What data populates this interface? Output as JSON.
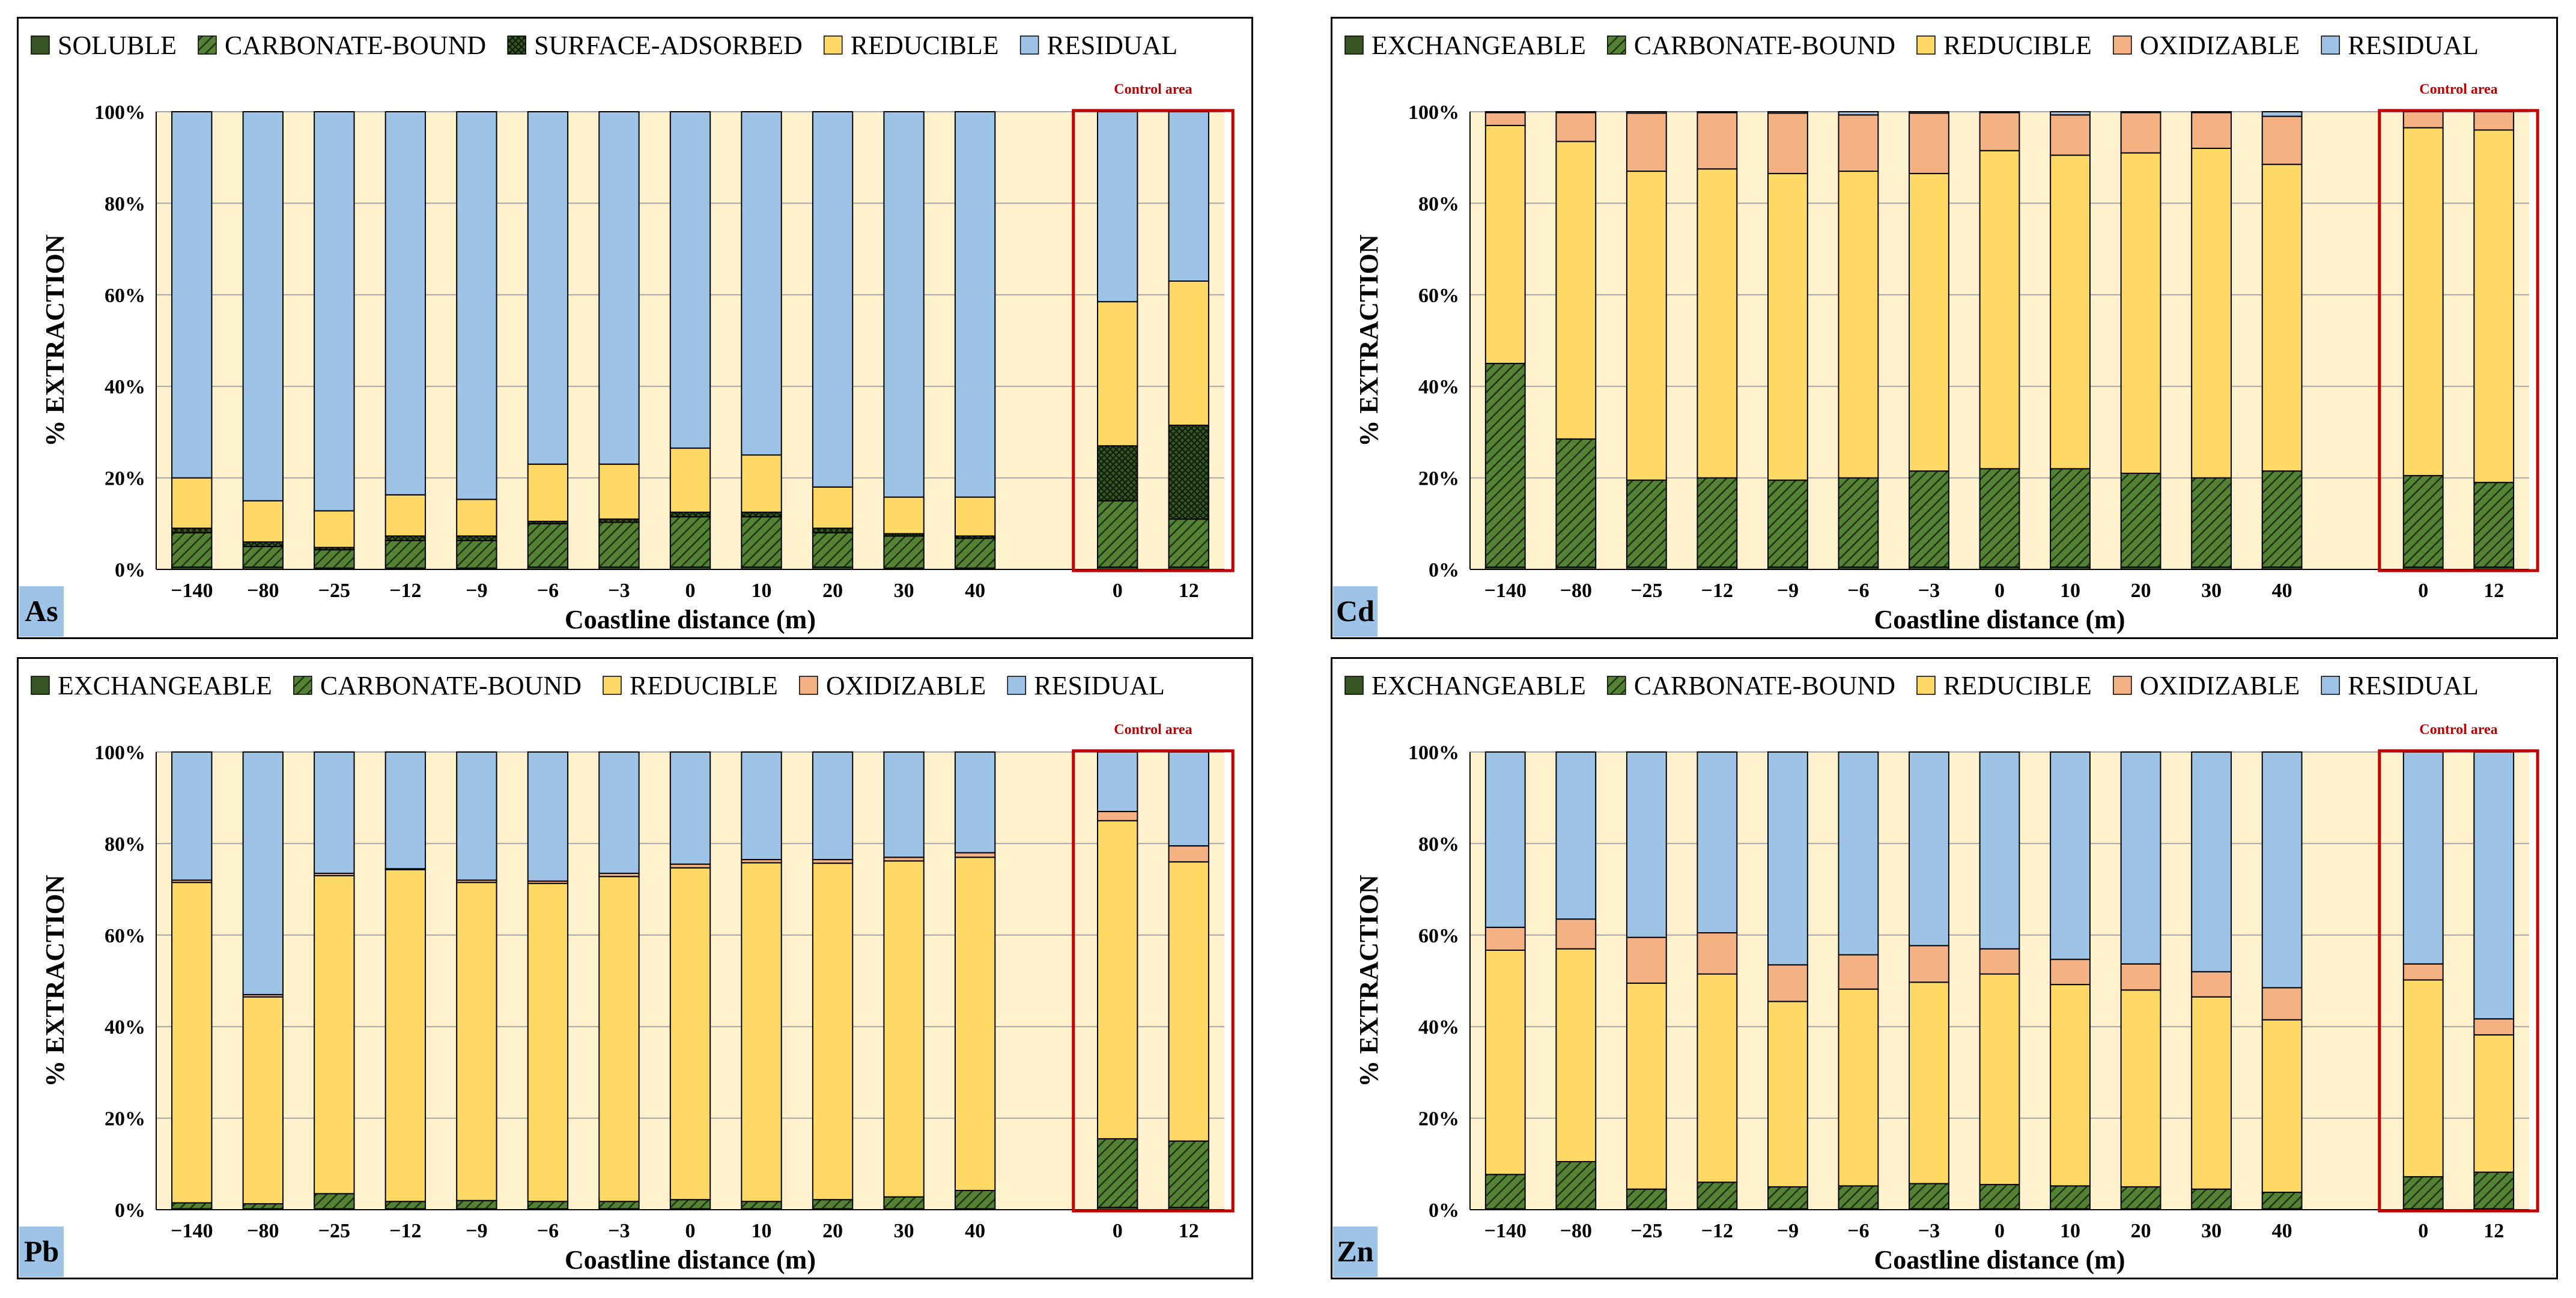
{
  "panel_labels": {
    "as": "As",
    "cd": "Cd",
    "pb": "Pb",
    "zn": "Zn"
  },
  "control_label": "Control area",
  "colors": {
    "background": "#fff2cc",
    "exchangeable": "#375623",
    "carbonate_bound": "#548235",
    "surface_adsorbed": "#375623",
    "reducible": "#ffd966",
    "oxidizable": "#f4b183",
    "residual": "#9dc3e6",
    "control_box": "#c00000"
  },
  "chart_data": [
    {
      "id": "as",
      "type": "bar",
      "stacked": true,
      "title": "As",
      "xlabel": "Coastline distance (m)",
      "ylabel": "% EXTRACTION",
      "ylim": [
        0,
        100
      ],
      "yticks": [
        "0%",
        "20%",
        "40%",
        "60%",
        "80%",
        "100%"
      ],
      "categories": [
        "−140",
        "−80",
        "−25",
        "−12",
        "−9",
        "−6",
        "−3",
        "0",
        "10",
        "20",
        "30",
        "40",
        "0",
        "12"
      ],
      "control_categories": [
        "0",
        "12"
      ],
      "legend": [
        "SOLUBLE",
        "CARBONATE-BOUND",
        "SURFACE-ADSORBED",
        "REDUCIBLE",
        "RESIDUAL"
      ],
      "series": [
        {
          "name": "SOLUBLE",
          "key": "exchangeable",
          "values": [
            0.5,
            0.5,
            0.3,
            0.3,
            0.3,
            0.5,
            0.5,
            0.5,
            0.5,
            0.5,
            0.3,
            0.3,
            0.5,
            0.5
          ]
        },
        {
          "name": "CARBONATE-BOUND",
          "key": "carbonate_bound",
          "values": [
            7.5,
            4.5,
            4.0,
            6.0,
            6.0,
            9.5,
            9.8,
            11.0,
            11.0,
            7.5,
            7.0,
            6.5,
            14.5,
            10.5
          ]
        },
        {
          "name": "SURFACE-ADSORBED",
          "key": "surface_adsorbed",
          "values": [
            1.0,
            1.0,
            0.5,
            1.0,
            1.0,
            0.5,
            0.7,
            1.0,
            1.0,
            1.0,
            0.5,
            0.5,
            12.0,
            20.5
          ]
        },
        {
          "name": "REDUCIBLE",
          "key": "reducible",
          "values": [
            11.0,
            9.0,
            8.0,
            9.0,
            8.0,
            12.5,
            12.0,
            14.0,
            12.5,
            9.0,
            8.0,
            8.5,
            31.5,
            31.5
          ]
        },
        {
          "name": "RESIDUAL",
          "key": "residual",
          "values": [
            80.0,
            85.0,
            87.2,
            83.7,
            84.7,
            77.0,
            77.0,
            73.5,
            75.0,
            82.0,
            84.2,
            84.2,
            41.5,
            37.0
          ]
        }
      ]
    },
    {
      "id": "cd",
      "type": "bar",
      "stacked": true,
      "title": "Cd",
      "xlabel": "Coastline distance (m)",
      "ylabel": "% EXTRACTION",
      "ylim": [
        0,
        100
      ],
      "yticks": [
        "0%",
        "20%",
        "40%",
        "60%",
        "80%",
        "100%"
      ],
      "categories": [
        "−140",
        "−80",
        "−25",
        "−12",
        "−9",
        "−6",
        "−3",
        "0",
        "10",
        "20",
        "30",
        "40",
        "0",
        "12"
      ],
      "control_categories": [
        "0",
        "12"
      ],
      "legend": [
        "EXCHANGEABLE",
        "CARBONATE-BOUND",
        "REDUCIBLE",
        "OXIDIZABLE",
        "RESIDUAL"
      ],
      "series": [
        {
          "name": "EXCHANGEABLE",
          "key": "exchangeable",
          "values": [
            0.5,
            0.5,
            0.5,
            0.5,
            0.5,
            0.5,
            0.5,
            0.5,
            0.5,
            0.5,
            0.5,
            0.5,
            0.5,
            0.5
          ]
        },
        {
          "name": "CARBONATE-BOUND",
          "key": "carbonate_bound",
          "values": [
            44.5,
            28.0,
            19.0,
            19.5,
            19.0,
            19.5,
            21.0,
            21.5,
            21.5,
            20.5,
            19.5,
            21.0,
            20.0,
            18.5
          ]
        },
        {
          "name": "REDUCIBLE",
          "key": "reducible",
          "values": [
            52.0,
            65.0,
            67.5,
            67.5,
            67.0,
            67.0,
            65.0,
            69.5,
            68.5,
            70.0,
            72.0,
            67.0,
            76.0,
            77.0
          ]
        },
        {
          "name": "OXIDIZABLE",
          "key": "oxidizable",
          "values": [
            2.8,
            6.3,
            12.7,
            12.3,
            13.2,
            12.3,
            13.2,
            8.3,
            8.8,
            8.8,
            7.8,
            10.5,
            3.5,
            4.0
          ]
        },
        {
          "name": "RESIDUAL",
          "key": "residual",
          "values": [
            0.2,
            0.2,
            0.3,
            0.2,
            0.3,
            0.7,
            0.3,
            0.2,
            0.7,
            0.2,
            0.2,
            1.0,
            0,
            0
          ]
        }
      ]
    },
    {
      "id": "pb",
      "type": "bar",
      "stacked": true,
      "title": "Pb",
      "xlabel": "Coastline distance (m)",
      "ylabel": "% EXTRACTION",
      "ylim": [
        0,
        100
      ],
      "yticks": [
        "0%",
        "20%",
        "40%",
        "60%",
        "80%",
        "100%"
      ],
      "categories": [
        "−140",
        "−80",
        "−25",
        "−12",
        "−9",
        "−6",
        "−3",
        "0",
        "10",
        "20",
        "30",
        "40",
        "0",
        "12"
      ],
      "control_categories": [
        "0",
        "12"
      ],
      "legend": [
        "EXCHANGEABLE",
        "CARBONATE-BOUND",
        "REDUCIBLE",
        "OXIDIZABLE",
        "RESIDUAL"
      ],
      "series": [
        {
          "name": "EXCHANGEABLE",
          "key": "exchangeable",
          "values": [
            0.2,
            0.2,
            0.2,
            0.2,
            0.2,
            0.2,
            0.2,
            0.2,
            0.2,
            0.2,
            0.2,
            0.2,
            0.5,
            0.5
          ]
        },
        {
          "name": "CARBONATE-BOUND",
          "key": "carbonate_bound",
          "values": [
            1.3,
            1.1,
            3.3,
            1.6,
            1.8,
            1.6,
            1.6,
            2.0,
            1.6,
            2.0,
            2.6,
            4.0,
            15.0,
            14.5
          ]
        },
        {
          "name": "REDUCIBLE",
          "key": "reducible",
          "values": [
            70.0,
            45.2,
            69.5,
            72.5,
            69.5,
            69.5,
            71.0,
            72.5,
            74.0,
            73.5,
            73.4,
            72.8,
            69.5,
            61.0
          ]
        },
        {
          "name": "OXIDIZABLE",
          "key": "oxidizable",
          "values": [
            0.5,
            0.5,
            0.5,
            0.2,
            0.5,
            0.5,
            0.7,
            0.8,
            0.7,
            0.8,
            0.8,
            1.0,
            2.0,
            3.5
          ]
        },
        {
          "name": "RESIDUAL",
          "key": "residual",
          "values": [
            28.0,
            53.0,
            26.5,
            25.5,
            28.0,
            28.2,
            26.5,
            24.5,
            23.5,
            23.5,
            23.0,
            22.0,
            13.0,
            20.5
          ]
        }
      ]
    },
    {
      "id": "zn",
      "type": "bar",
      "stacked": true,
      "title": "Zn",
      "xlabel": "Coastline distance (m)",
      "ylabel": "% EXTRACTION",
      "ylim": [
        0,
        100
      ],
      "yticks": [
        "0%",
        "20%",
        "40%",
        "60%",
        "80%",
        "100%"
      ],
      "categories": [
        "−140",
        "−80",
        "−25",
        "−12",
        "−9",
        "−6",
        "−3",
        "0",
        "10",
        "20",
        "30",
        "40",
        "0",
        "12"
      ],
      "control_categories": [
        "0",
        "12"
      ],
      "legend": [
        "EXCHANGEABLE",
        "CARBONATE-BOUND",
        "REDUCIBLE",
        "OXIDIZABLE",
        "RESIDUAL"
      ],
      "series": [
        {
          "name": "EXCHANGEABLE",
          "key": "exchangeable",
          "values": [
            0.2,
            0.2,
            0.2,
            0.2,
            0.2,
            0.2,
            0.2,
            0.2,
            0.2,
            0.2,
            0.2,
            0.2,
            0.2,
            0.2
          ]
        },
        {
          "name": "CARBONATE-BOUND",
          "key": "carbonate_bound",
          "values": [
            7.5,
            10.3,
            4.3,
            5.8,
            4.8,
            5.0,
            5.5,
            5.3,
            5.0,
            4.8,
            4.3,
            3.6,
            7.0,
            8.0
          ]
        },
        {
          "name": "REDUCIBLE",
          "key": "reducible",
          "values": [
            49.0,
            46.5,
            45.0,
            45.5,
            40.5,
            43.0,
            44.0,
            46.0,
            44.0,
            43.0,
            42.0,
            37.7,
            43.0,
            30.0
          ]
        },
        {
          "name": "OXIDIZABLE",
          "key": "oxidizable",
          "values": [
            5.0,
            6.5,
            10.0,
            9.0,
            8.0,
            7.5,
            8.0,
            5.5,
            5.5,
            5.7,
            5.5,
            7.0,
            3.5,
            3.5
          ]
        },
        {
          "name": "RESIDUAL",
          "key": "residual",
          "values": [
            38.3,
            36.5,
            40.5,
            39.5,
            46.5,
            44.3,
            42.3,
            43.0,
            45.3,
            46.3,
            48.0,
            51.5,
            46.3,
            58.3
          ]
        }
      ]
    }
  ]
}
